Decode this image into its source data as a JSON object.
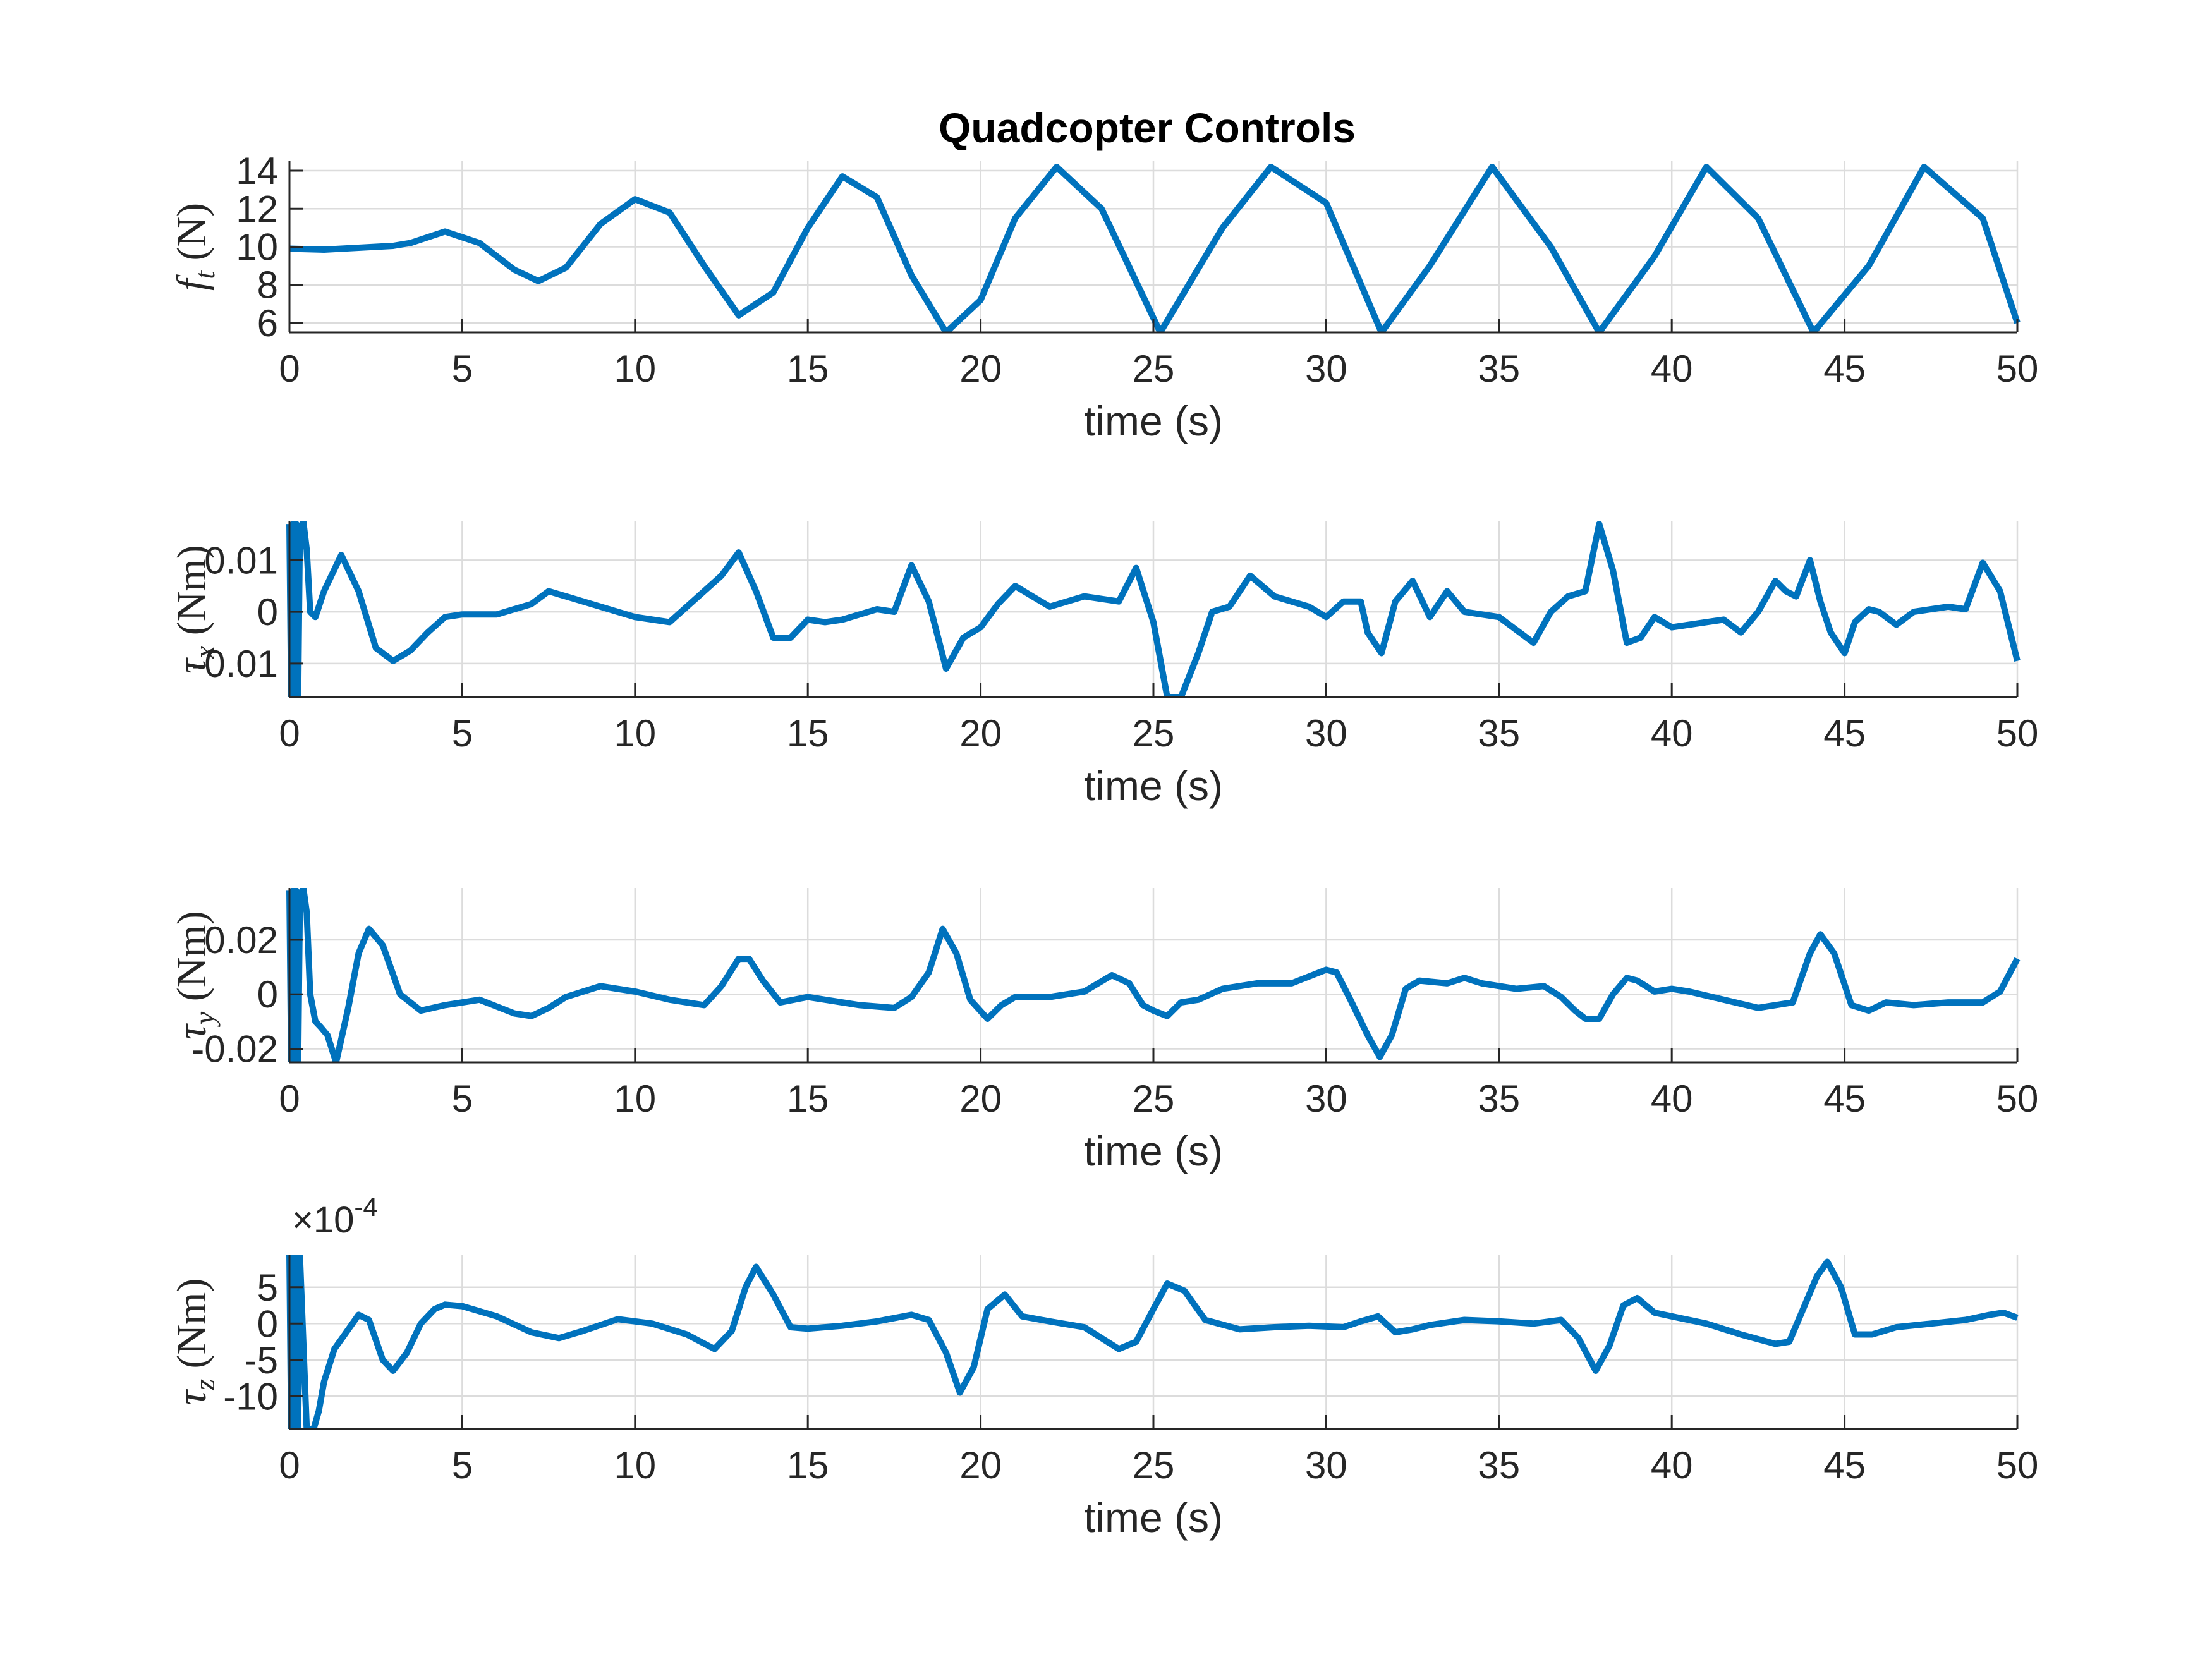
{
  "title": "Quadcopter Controls",
  "colors": {
    "series": "#0072BD",
    "axis": "#262626",
    "grid": "#dcdcdc"
  },
  "chart_data": [
    {
      "type": "line",
      "title": "Quadcopter Controls",
      "xlabel": "time (s)",
      "ylabel": {
        "symbol": "f",
        "subscript": "t",
        "unit": "(N)"
      },
      "xlim": [
        0,
        50
      ],
      "ylim": [
        5.5,
        14.5
      ],
      "xticks": [
        0,
        5,
        10,
        15,
        20,
        25,
        30,
        35,
        40,
        45,
        50
      ],
      "yticks": [
        6,
        8,
        10,
        12,
        14
      ],
      "ytick_labels": [
        "6",
        "8",
        "10",
        "12",
        "14"
      ],
      "grid": true,
      "series": [
        {
          "x": [
            0,
            1,
            2,
            3,
            3.5,
            4.5,
            5.5,
            6.5,
            7.2,
            8,
            9,
            10,
            11,
            12,
            13,
            14,
            15,
            16,
            17,
            18,
            19,
            20,
            21,
            22.2,
            23.5,
            25.2,
            27,
            28.4,
            30,
            31.6,
            33,
            34.8,
            36.5,
            37.9,
            39.5,
            41,
            42.5,
            44.1,
            45.7,
            47.3,
            49,
            50
          ],
          "y": [
            9.9,
            9.85,
            9.95,
            10.05,
            10.2,
            10.8,
            10.2,
            8.8,
            8.2,
            8.9,
            11.2,
            12.5,
            11.8,
            9.0,
            6.4,
            7.6,
            11.0,
            13.7,
            12.6,
            8.5,
            5.5,
            7.2,
            11.5,
            14.2,
            12.0,
            5.5,
            11.0,
            14.2,
            12.3,
            5.5,
            9.0,
            14.2,
            10.0,
            5.5,
            9.5,
            14.2,
            11.5,
            5.5,
            9.0,
            14.2,
            11.5,
            6.0
          ]
        }
      ]
    },
    {
      "type": "line",
      "xlabel": "time (s)",
      "ylabel": {
        "symbol": "τ",
        "subscript": "x",
        "unit": "(Nm)"
      },
      "xlim": [
        0,
        50
      ],
      "ylim": [
        -0.0165,
        0.0175
      ],
      "xticks": [
        0,
        5,
        10,
        15,
        20,
        25,
        30,
        35,
        40,
        45,
        50
      ],
      "yticks": [
        -0.01,
        0,
        0.01
      ],
      "ytick_labels": [
        "-0.01",
        "0",
        "0.01"
      ],
      "grid": true,
      "series": [
        {
          "x": [
            0,
            0.05,
            0.1,
            0.15,
            0.2,
            0.25,
            0.3,
            0.4,
            0.5,
            0.6,
            0.75,
            1.0,
            1.5,
            2.0,
            2.5,
            3.0,
            3.5,
            4.0,
            4.5,
            5.0,
            6.0,
            7.0,
            7.5,
            8.0,
            9.0,
            10.0,
            11.0,
            12.0,
            12.5,
            13.0,
            13.5,
            14.0,
            14.5,
            15.0,
            15.5,
            16.0,
            17.0,
            17.5,
            18.0,
            18.5,
            19.0,
            19.5,
            20.0,
            20.5,
            21.0,
            21.5,
            22.0,
            23.0,
            24.0,
            24.5,
            25.0,
            25.4,
            25.8,
            26.3,
            26.7,
            27.2,
            27.8,
            28.5,
            29.5,
            30.0,
            30.5,
            31.0,
            31.2,
            31.6,
            32.0,
            32.5,
            33.0,
            33.5,
            34.0,
            35.0,
            36.0,
            36.5,
            37.0,
            37.5,
            37.9,
            38.3,
            38.7,
            39.1,
            39.5,
            40.0,
            41.0,
            41.5,
            42.0,
            42.5,
            43.0,
            43.3,
            43.6,
            44.0,
            44.3,
            44.6,
            45.0,
            45.3,
            45.7,
            46.0,
            46.5,
            47.0,
            48.0,
            48.5,
            49.0,
            49.5,
            50.0
          ],
          "y": [
            0.017,
            -0.0165,
            0.017,
            -0.0165,
            0.017,
            -0.0165,
            0.016,
            0.0175,
            0.012,
            0.0,
            -0.001,
            0.004,
            0.011,
            0.004,
            -0.007,
            -0.0095,
            -0.0075,
            -0.004,
            -0.001,
            -0.0005,
            -0.0005,
            0.0015,
            0.004,
            0.003,
            0.001,
            -0.001,
            -0.002,
            0.004,
            0.007,
            0.0115,
            0.004,
            -0.005,
            -0.005,
            -0.0015,
            -0.002,
            -0.0015,
            0.0005,
            0.0,
            0.009,
            0.002,
            -0.011,
            -0.005,
            -0.003,
            0.0015,
            0.005,
            0.003,
            0.001,
            0.003,
            0.002,
            0.0085,
            -0.002,
            -0.0165,
            -0.0165,
            -0.008,
            0.0,
            0.001,
            0.007,
            0.003,
            0.001,
            -0.001,
            0.002,
            0.002,
            -0.004,
            -0.008,
            0.002,
            0.006,
            -0.001,
            0.004,
            0.0,
            -0.001,
            -0.006,
            0.0,
            0.003,
            0.004,
            0.017,
            0.008,
            -0.006,
            -0.005,
            -0.001,
            -0.003,
            -0.002,
            -0.0015,
            -0.004,
            0.0,
            0.006,
            0.004,
            0.003,
            0.01,
            0.002,
            -0.004,
            -0.008,
            -0.002,
            0.0005,
            0.0,
            -0.0025,
            0.0,
            0.001,
            0.0005,
            0.0095,
            0.004,
            -0.0095
          ]
        }
      ]
    },
    {
      "type": "line",
      "xlabel": "time (s)",
      "ylabel": {
        "symbol": "τ",
        "subscript": "y",
        "unit": "(Nm)"
      },
      "xlim": [
        0,
        50
      ],
      "ylim": [
        -0.025,
        0.039
      ],
      "xticks": [
        0,
        5,
        10,
        15,
        20,
        25,
        30,
        35,
        40,
        45,
        50
      ],
      "yticks": [
        -0.02,
        0,
        0.02
      ],
      "ytick_labels": [
        "-0.02",
        "0",
        "0.02"
      ],
      "grid": true,
      "series": [
        {
          "x": [
            0,
            0.05,
            0.1,
            0.15,
            0.2,
            0.25,
            0.3,
            0.4,
            0.5,
            0.6,
            0.75,
            0.9,
            1.1,
            1.35,
            1.7,
            2.0,
            2.3,
            2.7,
            3.2,
            3.8,
            4.5,
            5.5,
            6.5,
            7.0,
            7.5,
            8.0,
            9.0,
            10.0,
            11.0,
            12.0,
            12.5,
            13.0,
            13.3,
            13.7,
            14.2,
            15.0,
            15.5,
            16.5,
            17.5,
            18.0,
            18.5,
            18.9,
            19.3,
            19.7,
            20.2,
            20.6,
            21.0,
            22.0,
            23.0,
            23.8,
            24.3,
            24.7,
            25.0,
            25.4,
            25.8,
            26.3,
            27.0,
            28.0,
            29.0,
            30.0,
            30.3,
            30.7,
            31.2,
            31.55,
            31.9,
            32.3,
            32.7,
            33.5,
            34.0,
            34.5,
            35.5,
            36.3,
            36.8,
            37.2,
            37.5,
            37.9,
            38.3,
            38.7,
            39.0,
            39.5,
            40.0,
            40.5,
            41.5,
            42.5,
            43.0,
            43.5,
            44.0,
            44.3,
            44.7,
            45.2,
            45.7,
            46.2,
            47.0,
            48.0,
            49.0,
            49.5,
            50.0
          ],
          "y": [
            0.038,
            -0.025,
            0.038,
            -0.025,
            0.038,
            -0.025,
            0.035,
            0.039,
            0.03,
            0.0,
            -0.01,
            -0.012,
            -0.015,
            -0.025,
            -0.005,
            0.015,
            0.024,
            0.018,
            0.0,
            -0.006,
            -0.004,
            -0.002,
            -0.007,
            -0.008,
            -0.005,
            -0.001,
            0.003,
            0.001,
            -0.002,
            -0.004,
            0.003,
            0.013,
            0.013,
            0.005,
            -0.003,
            -0.001,
            -0.002,
            -0.004,
            -0.005,
            -0.001,
            0.008,
            0.024,
            0.015,
            -0.002,
            -0.009,
            -0.004,
            -0.001,
            -0.001,
            0.001,
            0.007,
            0.004,
            -0.004,
            -0.006,
            -0.008,
            -0.003,
            -0.002,
            0.002,
            0.004,
            0.004,
            0.009,
            0.008,
            -0.002,
            -0.015,
            -0.023,
            -0.015,
            0.002,
            0.005,
            0.004,
            0.006,
            0.004,
            0.002,
            0.003,
            -0.001,
            -0.006,
            -0.009,
            -0.009,
            0.0,
            0.006,
            0.005,
            0.001,
            0.002,
            0.001,
            -0.002,
            -0.005,
            -0.004,
            -0.003,
            0.015,
            0.022,
            0.015,
            -0.004,
            -0.006,
            -0.003,
            -0.004,
            -0.003,
            -0.003,
            0.001,
            0.013
          ]
        }
      ]
    },
    {
      "type": "line",
      "xlabel": "time (s)",
      "ylabel": {
        "symbol": "τ",
        "subscript": "z",
        "unit": "(Nm)"
      },
      "exponent_label": "×10",
      "exponent": "-4",
      "xlim": [
        0,
        50
      ],
      "ylim": [
        -14.5,
        9.5
      ],
      "xticks": [
        0,
        5,
        10,
        15,
        20,
        25,
        30,
        35,
        40,
        45,
        50
      ],
      "yticks": [
        -10,
        -5,
        0,
        5
      ],
      "ytick_labels": [
        "-10",
        "-5",
        "0",
        "5"
      ],
      "grid": true,
      "series": [
        {
          "x": [
            0,
            0.05,
            0.1,
            0.15,
            0.2,
            0.25,
            0.3,
            0.5,
            0.7,
            0.85,
            1.0,
            1.3,
            1.6,
            2.0,
            2.3,
            2.7,
            3.0,
            3.4,
            3.8,
            4.2,
            4.5,
            5.0,
            6.0,
            7.0,
            7.8,
            8.5,
            9.5,
            10.5,
            11.5,
            12.3,
            12.8,
            13.2,
            13.5,
            14.0,
            14.5,
            15.0,
            16.0,
            17.0,
            18.0,
            18.5,
            19.0,
            19.4,
            19.8,
            20.2,
            20.7,
            21.2,
            22.0,
            23.0,
            24.0,
            24.5,
            25.0,
            25.4,
            25.9,
            26.5,
            27.5,
            28.5,
            29.5,
            30.5,
            31.0,
            31.5,
            32.0,
            32.5,
            33.0,
            34.0,
            35.0,
            36.0,
            36.8,
            37.3,
            37.8,
            38.2,
            38.6,
            39.0,
            39.5,
            40.0,
            41.0,
            42.0,
            43.0,
            43.4,
            43.8,
            44.2,
            44.5,
            44.9,
            45.3,
            45.8,
            46.5,
            47.5,
            48.5,
            49.2,
            49.6,
            50.0
          ],
          "y": [
            9.5,
            -14.5,
            9.5,
            -14.5,
            9.5,
            -14.5,
            9.5,
            -14.5,
            -14.5,
            -12.0,
            -8.0,
            -3.5,
            -1.5,
            1.2,
            0.5,
            -5.0,
            -6.5,
            -4.0,
            0.0,
            2.0,
            2.6,
            2.4,
            1.0,
            -1.2,
            -2.0,
            -1.0,
            0.6,
            0.0,
            -1.5,
            -3.5,
            -1.0,
            5.0,
            7.8,
            4.0,
            -0.5,
            -0.7,
            -0.3,
            0.3,
            1.2,
            0.5,
            -4.0,
            -9.5,
            -6.0,
            2.0,
            4.0,
            1.0,
            0.3,
            -0.5,
            -3.5,
            -2.5,
            2.0,
            5.5,
            4.5,
            0.5,
            -0.8,
            -0.5,
            -0.3,
            -0.5,
            0.3,
            1.0,
            -1.2,
            -0.8,
            -0.2,
            0.5,
            0.3,
            0.0,
            0.5,
            -2.0,
            -6.5,
            -3.0,
            2.5,
            3.5,
            1.5,
            1.0,
            0.0,
            -1.5,
            -2.8,
            -2.5,
            2.0,
            6.5,
            8.5,
            5.0,
            -1.5,
            -1.5,
            -0.5,
            0.0,
            0.5,
            1.2,
            1.5,
            0.8
          ]
        }
      ]
    }
  ]
}
